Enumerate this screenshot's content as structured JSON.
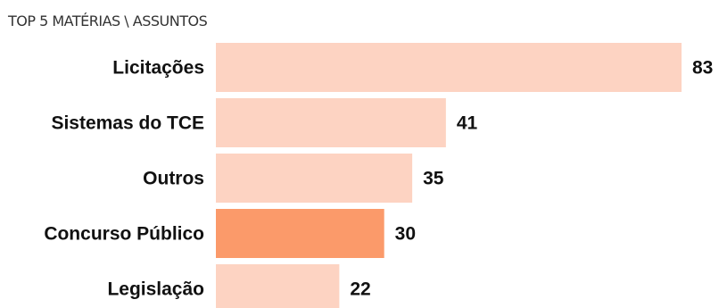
{
  "chart_data": {
    "type": "bar",
    "orientation": "horizontal",
    "title": "TOP 5 MATÉRIAS \\ ASSUNTOS",
    "categories": [
      "Licitações",
      "Sistemas do TCE",
      "Outros",
      "Concurso Público",
      "Legislação"
    ],
    "values": [
      83,
      41,
      35,
      30,
      22
    ],
    "xlim": [
      0,
      83
    ],
    "grid": false,
    "legend": "none",
    "data_labels": true,
    "highlighted_category": "Concurso Público",
    "colors": {
      "bar": "#fdd3c2",
      "highlight": "#fb9a6a",
      "text": "#111111"
    }
  }
}
